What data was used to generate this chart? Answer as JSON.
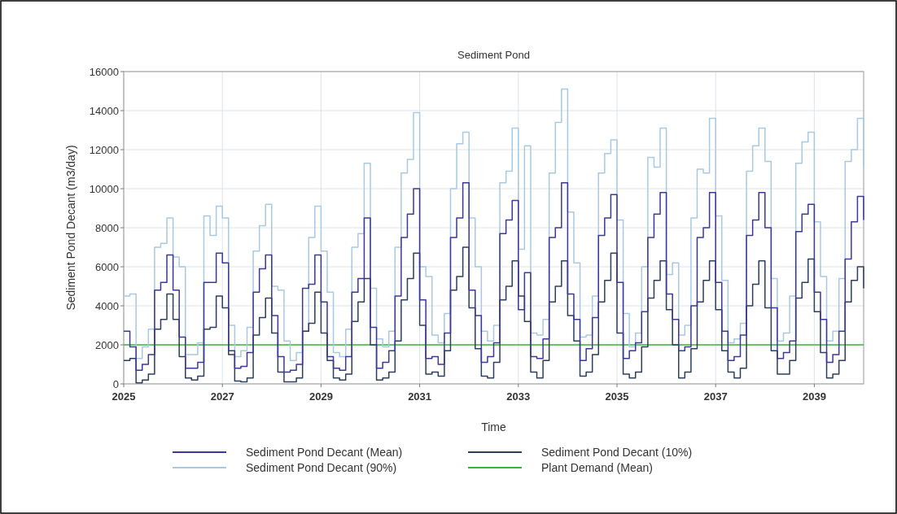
{
  "chart_data": {
    "type": "step",
    "title": "Sediment Pond",
    "xlabel": "Time",
    "ylabel": "Sediment Pond Decant (m3/day)",
    "x": [
      2025,
      2025.125,
      2025.25,
      2025.375,
      2025.5,
      2025.625,
      2025.75,
      2025.875,
      2026,
      2026.125,
      2026.25,
      2026.375,
      2026.5,
      2026.625,
      2026.75,
      2026.875,
      2027,
      2027.125,
      2027.25,
      2027.375,
      2027.5,
      2027.625,
      2027.75,
      2027.875,
      2028,
      2028.125,
      2028.25,
      2028.375,
      2028.5,
      2028.625,
      2028.75,
      2028.875,
      2029,
      2029.125,
      2029.25,
      2029.375,
      2029.5,
      2029.625,
      2029.75,
      2029.875,
      2030,
      2030.125,
      2030.25,
      2030.375,
      2030.5,
      2030.625,
      2030.75,
      2030.875,
      2031,
      2031.125,
      2031.25,
      2031.375,
      2031.5,
      2031.625,
      2031.75,
      2031.875,
      2032,
      2032.125,
      2032.25,
      2032.375,
      2032.5,
      2032.625,
      2032.75,
      2032.875,
      2033,
      2033.125,
      2033.25,
      2033.375,
      2033.5,
      2033.625,
      2033.75,
      2033.875,
      2034,
      2034.125,
      2034.25,
      2034.375,
      2034.5,
      2034.625,
      2034.75,
      2034.875,
      2035,
      2035.125,
      2035.25,
      2035.375,
      2035.5,
      2035.625,
      2035.75,
      2035.875,
      2036,
      2036.125,
      2036.25,
      2036.375,
      2036.5,
      2036.625,
      2036.75,
      2036.875,
      2037,
      2037.125,
      2037.25,
      2037.375,
      2037.5,
      2037.625,
      2037.75,
      2037.875,
      2038,
      2038.125,
      2038.25,
      2038.375,
      2038.5,
      2038.625,
      2038.75,
      2038.875,
      2039,
      2039.125,
      2039.25,
      2039.375,
      2039.5,
      2039.625,
      2039.75,
      2039.875,
      2040
    ],
    "xlim": [
      2025,
      2040
    ],
    "xticks": [
      2025,
      2027,
      2029,
      2031,
      2033,
      2035,
      2037,
      2039
    ],
    "ylim": [
      0,
      16000
    ],
    "yticks": [
      0,
      2000,
      4000,
      6000,
      8000,
      10000,
      12000,
      14000,
      16000
    ],
    "grid": true,
    "legend": "bottom",
    "series": [
      {
        "name": "Sediment Pond Decant (Mean)",
        "color": "#3b3899",
        "values": [
          2700,
          1900,
          700,
          1000,
          1500,
          4800,
          5200,
          6600,
          4800,
          2400,
          800,
          800,
          1100,
          5200,
          5200,
          6700,
          6200,
          1700,
          800,
          900,
          1600,
          4700,
          5900,
          6600,
          3500,
          1400,
          600,
          700,
          1000,
          4900,
          5100,
          6600,
          4200,
          1400,
          800,
          700,
          1400,
          4700,
          5400,
          8500,
          2900,
          800,
          1100,
          1700,
          4500,
          7500,
          8700,
          10000,
          4300,
          1300,
          1400,
          1000,
          2600,
          7500,
          8500,
          10300,
          4800,
          3500,
          1100,
          1400,
          2100,
          7700,
          8400,
          9400,
          3800,
          5700,
          1400,
          1300,
          2300,
          7500,
          8000,
          10300,
          4600,
          3300,
          1200,
          1800,
          3400,
          7600,
          8500,
          9700,
          5200,
          1300,
          1700,
          2100,
          3700,
          7500,
          8700,
          9800,
          4600,
          3300,
          1700,
          1900,
          4000,
          7500,
          8000,
          9800,
          5200,
          2700,
          1200,
          1400,
          2500,
          7600,
          8400,
          9800,
          8000,
          3900,
          1300,
          1600,
          2200,
          7800,
          8700,
          9200,
          4700,
          3300,
          1100,
          1500,
          2700,
          6400,
          8300,
          9600,
          8400
        ]
      },
      {
        "name": "Sediment Pond Decant (10%)",
        "color": "#2c3e5c",
        "values": [
          1200,
          1300,
          50,
          200,
          500,
          2800,
          3300,
          4600,
          3300,
          1400,
          300,
          200,
          400,
          2800,
          2900,
          4500,
          3900,
          1500,
          150,
          100,
          300,
          2500,
          3400,
          4400,
          2600,
          600,
          100,
          100,
          300,
          2700,
          3100,
          4700,
          2600,
          1200,
          300,
          200,
          500,
          3200,
          4200,
          5400,
          2000,
          200,
          300,
          600,
          2200,
          4300,
          5400,
          6700,
          3000,
          500,
          600,
          400,
          1700,
          4800,
          5500,
          7000,
          3900,
          1800,
          400,
          300,
          1100,
          4300,
          5000,
          6300,
          4500,
          3200,
          600,
          300,
          1200,
          4200,
          5000,
          6300,
          3500,
          2200,
          400,
          600,
          1500,
          4200,
          5300,
          6700,
          2600,
          500,
          300,
          600,
          1900,
          4400,
          5300,
          6300,
          3800,
          2000,
          300,
          600,
          1800,
          4200,
          5300,
          6300,
          3800,
          1700,
          600,
          300,
          800,
          4000,
          5100,
          6300,
          3900,
          1700,
          500,
          500,
          1200,
          4400,
          5200,
          6400,
          3700,
          1600,
          300,
          500,
          1200,
          4200,
          5300,
          6000,
          4900
        ]
      },
      {
        "name": "Sediment Pond Decant (90%)",
        "color": "#a9c9e2",
        "values": [
          4500,
          4600,
          1300,
          1900,
          2800,
          7000,
          7200,
          8500,
          6500,
          6000,
          1500,
          1500,
          2100,
          8600,
          7600,
          9100,
          8500,
          3000,
          1400,
          1700,
          2900,
          6800,
          8100,
          9200,
          5000,
          4800,
          2200,
          1200,
          1600,
          2700,
          7500,
          9100,
          6800,
          4700,
          1600,
          1400,
          2800,
          7000,
          7700,
          11300,
          4900,
          2300,
          1900,
          2700,
          7000,
          10800,
          11500,
          13900,
          6000,
          5500,
          2500,
          2100,
          3600,
          10000,
          12300,
          12900,
          8500,
          6000,
          2700,
          2200,
          3000,
          10300,
          10900,
          13100,
          6900,
          12200,
          2600,
          2500,
          3300,
          10800,
          13400,
          15100,
          8800,
          6200,
          2400,
          2500,
          4500,
          10800,
          11800,
          12500,
          8400,
          3600,
          1900,
          2600,
          6000,
          11600,
          11100,
          13100,
          5600,
          6200,
          2500,
          3000,
          8500,
          11000,
          10800,
          13600,
          8600,
          5300,
          2100,
          2300,
          3100,
          10900,
          12200,
          13100,
          11400,
          5400,
          2200,
          2600,
          4500,
          11300,
          12400,
          12900,
          8300,
          5500,
          2200,
          2700,
          5400,
          11400,
          12000,
          13600,
          11100
        ]
      },
      {
        "name": "Plant Demand (Mean)",
        "type": "line",
        "color": "#3cb43c",
        "x": [
          2025,
          2040
        ],
        "values": [
          2000,
          2000
        ]
      }
    ]
  }
}
